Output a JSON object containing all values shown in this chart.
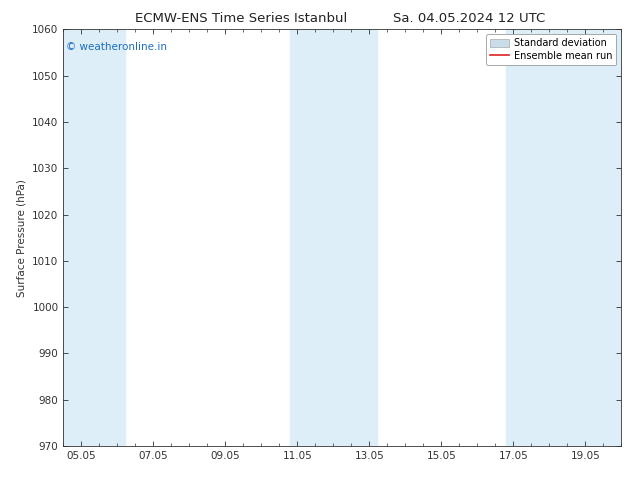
{
  "title_left": "ECMW-ENS Time Series Istanbul",
  "title_right": "Sa. 04.05.2024 12 UTC",
  "ylabel": "Surface Pressure (hPa)",
  "ylim": [
    970,
    1060
  ],
  "yticks": [
    970,
    980,
    990,
    1000,
    1010,
    1020,
    1030,
    1040,
    1050,
    1060
  ],
  "xtick_labels": [
    "05.05",
    "07.05",
    "09.05",
    "11.05",
    "13.05",
    "15.05",
    "17.05",
    "19.05"
  ],
  "xtick_positions": [
    0,
    2,
    4,
    6,
    8,
    10,
    12,
    14
  ],
  "x_min": -0.5,
  "x_max": 15.0,
  "shaded_bands": [
    {
      "x_start": -0.5,
      "x_end": 1.2,
      "color": "#ddeef8"
    },
    {
      "x_start": 5.8,
      "x_end": 8.2,
      "color": "#ddeef8"
    },
    {
      "x_start": 11.8,
      "x_end": 15.0,
      "color": "#ddeef8"
    }
  ],
  "watermark_text": "© weatheronline.in",
  "watermark_color": "#1a6ec0",
  "legend_std_color": "#c8dde8",
  "legend_mean_color": "#dd2222",
  "bg_color": "#ffffff",
  "plot_bg_color": "#ffffff",
  "spine_color": "#333333",
  "tick_color": "#333333",
  "title_fontsize": 9.5,
  "axis_label_fontsize": 7.5,
  "tick_fontsize": 7.5,
  "watermark_fontsize": 7.5,
  "legend_fontsize": 7.0
}
